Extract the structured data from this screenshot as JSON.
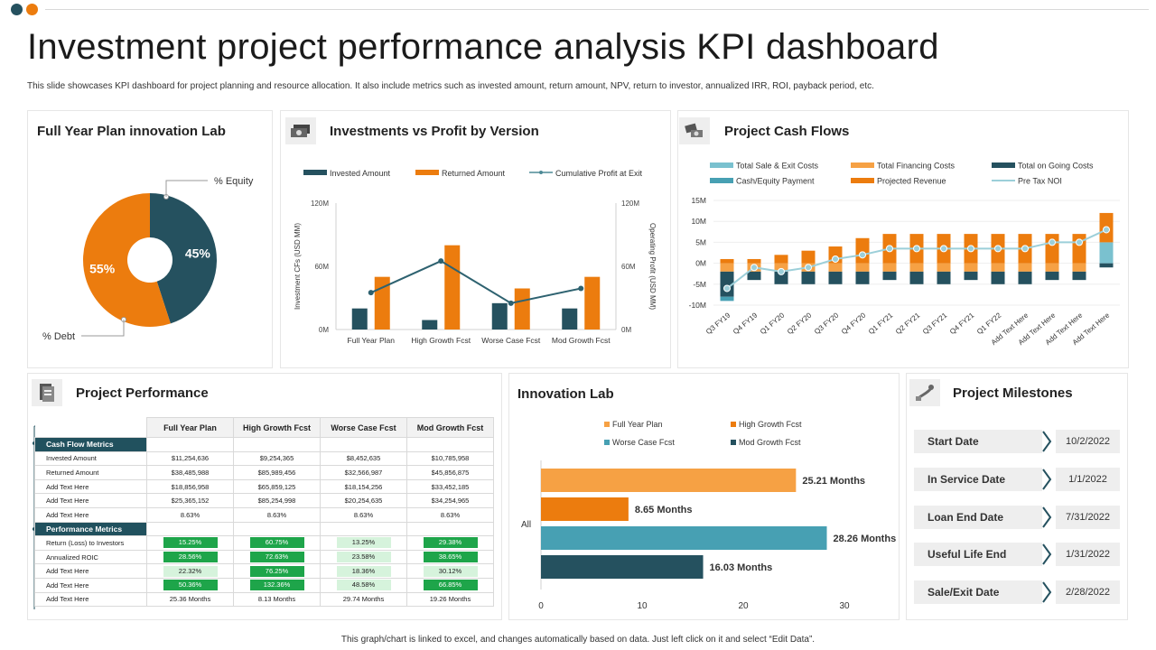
{
  "header": {
    "title": "Investment project performance analysis KPI dashboard",
    "subtitle": "This slide showcases KPI dashboard for project planning and resource allocation. It also include metrics such as invested amount, return amount, NPV, return to investor, annualized IRR, ROI, payback period, etc."
  },
  "colors": {
    "teal_dark": "#25515f",
    "orange": "#ec7c0e",
    "orange_light": "#f6a144",
    "teal_light": "#47a0b3",
    "sky": "#7ac1cf",
    "green": "#1ea54a",
    "green_light": "#d6f3dc"
  },
  "panels": {
    "lab": "Full Year Plan innovation Lab",
    "inv": "Investments vs Profit by Version",
    "cash": "Project Cash Flows",
    "perf": "Project Performance",
    "ilab": "Innovation Lab",
    "ms": "Project Milestones"
  },
  "icons": {
    "inv": "money-icon",
    "cash": "cash-icon",
    "perf": "document-icon",
    "ms": "road-icon"
  },
  "chart_data": [
    {
      "type": "pie",
      "title": "Full Year Plan innovation Lab",
      "labels": [
        "% Equity",
        "% Debt"
      ],
      "values": [
        45,
        55
      ],
      "value_labels": [
        "45%",
        "55%"
      ],
      "colors": [
        "#25515f",
        "#ec7c0e"
      ]
    },
    {
      "type": "bar",
      "title": "Investments vs Profit by Version",
      "categories": [
        "Full Year Plan",
        "High Growth Fcst",
        "Worse Case Fcst",
        "Mod Growth Fcst"
      ],
      "series": [
        {
          "name": "Invested Amount",
          "values": [
            20,
            9,
            25,
            20
          ]
        },
        {
          "name": "Returned Amount",
          "values": [
            50,
            80,
            39,
            50
          ]
        },
        {
          "name": "Cumulative Profit at Exit",
          "type": "line",
          "values": [
            35,
            65,
            25,
            39
          ]
        }
      ],
      "ylabel": "Investment CFs (USD MM)",
      "y2label": "Operating Profit (USD MM)",
      "y_ticks": [
        "0M",
        "60M",
        "120M"
      ],
      "ylim": [
        0,
        120
      ]
    },
    {
      "type": "bar",
      "title": "Project Cash Flows",
      "categories": [
        "Q3 FY19",
        "Q4 FY19",
        "Q1 FY20",
        "Q2 FY20",
        "Q3 FY20",
        "Q4 FY20",
        "Q1 FY21",
        "Q2 FY21",
        "Q3 FY21",
        "Q4 FY21",
        "Q1 FY22",
        "Add Text Here",
        "Add Text Here",
        "Add Text Here",
        "Add Text Here"
      ],
      "series": [
        {
          "name": "Total Sale & Exit Costs",
          "values": [
            0,
            0,
            0,
            0,
            0,
            0,
            0,
            0,
            0,
            0,
            0,
            0,
            0,
            0,
            5
          ]
        },
        {
          "name": "Total Financing Costs",
          "values": [
            -2,
            -2,
            -2,
            -2,
            -2,
            -2,
            -2,
            -2,
            -2,
            -2,
            -2,
            -2,
            -2,
            -2,
            0
          ]
        },
        {
          "name": "Total on Going Costs",
          "values": [
            -6,
            -2,
            -3,
            -3,
            -3,
            -3,
            -2,
            -3,
            -3,
            -2,
            -3,
            -3,
            -2,
            -2,
            -1
          ]
        },
        {
          "name": "Cash/Equity Payment",
          "values": [
            -1,
            0,
            0,
            0,
            0,
            0,
            0,
            0,
            0,
            0,
            0,
            0,
            0,
            0,
            0
          ]
        },
        {
          "name": "Projected Revenue",
          "values": [
            1,
            1,
            2,
            3,
            4,
            6,
            7,
            7,
            7,
            7,
            7,
            7,
            7,
            7,
            7
          ]
        },
        {
          "name": "Pre Tax NOI",
          "type": "line",
          "values": [
            -6,
            -1,
            -2,
            -1,
            1,
            2,
            3.5,
            3.5,
            3.5,
            3.5,
            3.5,
            3.5,
            5,
            5,
            8
          ]
        }
      ],
      "y_ticks": [
        "-10M",
        "-5M",
        "0M",
        "5M",
        "10M",
        "15M"
      ],
      "ylim": [
        -10,
        15
      ]
    },
    {
      "type": "bar",
      "title": "Innovation Lab",
      "orientation": "horizontal",
      "categories": [
        "All"
      ],
      "series": [
        {
          "name": "Full Year Plan",
          "values": [
            25.21
          ]
        },
        {
          "name": "High Growth Fcst",
          "values": [
            8.65
          ]
        },
        {
          "name": "Worse Case Fcst",
          "values": [
            28.26
          ]
        },
        {
          "name": "Mod Growth Fcst",
          "values": [
            16.03
          ]
        }
      ],
      "value_labels": [
        "25.21 Months",
        "8.65 Months",
        "28.26 Months",
        "16.03 Months"
      ],
      "x_ticks": [
        "0",
        "10",
        "20",
        "30"
      ],
      "xlim": [
        0,
        30
      ]
    },
    {
      "type": "table",
      "title": "Project Performance",
      "columns": [
        "Full Year Plan",
        "High Growth Fcst",
        "Worse Case Fcst",
        "Mod Growth Fcst"
      ],
      "sections": [
        {
          "name": "Cash Flow Metrics",
          "rows": [
            {
              "label": "Invested Amount",
              "values": [
                "$11,254,636",
                "$9,254,365",
                "$8,452,635",
                "$10,785,958"
              ]
            },
            {
              "label": "Returned Amount",
              "values": [
                "$38,485,988",
                "$85,989,456",
                "$32,566,987",
                "$45,856,875"
              ]
            },
            {
              "label": "Add Text Here",
              "values": [
                "$18,856,958",
                "$65,859,125",
                "$18,154,256",
                "$33,452,185"
              ]
            },
            {
              "label": "Add Text Here",
              "values": [
                "$25,365,152",
                "$85,254,998",
                "$20,254,635",
                "$34,254,965"
              ]
            },
            {
              "label": "Add Text Here",
              "values": [
                "8.63%",
                "8.63%",
                "8.63%",
                "8.63%"
              ]
            }
          ]
        },
        {
          "name": "Performance Metrics",
          "rows": [
            {
              "label": "Return (Loss) to Investors",
              "values": [
                "15.25%",
                "60.75%",
                "13.25%",
                "29.38%"
              ]
            },
            {
              "label": "Annualized ROIC",
              "values": [
                "28.56%",
                "72.63%",
                "23.58%",
                "38.65%"
              ]
            },
            {
              "label": "Add Text Here",
              "values": [
                "22.32%",
                "76.25%",
                "18.36%",
                "30.12%"
              ]
            },
            {
              "label": "Add Text Here",
              "values": [
                "50.36%",
                "132.36%",
                "48.58%",
                "66.85%"
              ]
            },
            {
              "label": "Add Text Here",
              "values": [
                "25.36 Months",
                "8.13 Months",
                "29.74 Months",
                "19.26 Months"
              ]
            }
          ]
        }
      ]
    }
  ],
  "milestones": [
    {
      "label": "Start Date",
      "date": "10/2/2022"
    },
    {
      "label": "In Service Date",
      "date": "1/1/2022"
    },
    {
      "label": "Loan End Date",
      "date": "7/31/2022"
    },
    {
      "label": "Useful Life End",
      "date": "1/31/2022"
    },
    {
      "label": "Sale/Exit Date",
      "date": "2/28/2022"
    }
  ],
  "footer": "This graph/chart is linked to excel, and changes automatically based on data. Just left click on it and select “Edit Data”."
}
